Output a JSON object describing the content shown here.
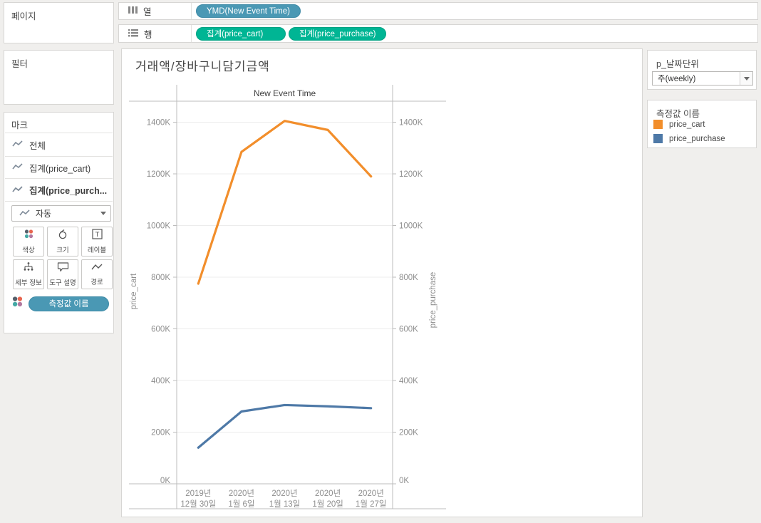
{
  "panels": {
    "pages": {
      "title": "페이지"
    },
    "filters": {
      "title": "필터"
    },
    "marks": {
      "title": "마크",
      "items": [
        "전체",
        "집계(price_cart)",
        "집계(price_purch..."
      ],
      "mark_type": "자동",
      "buttons": [
        {
          "label": "색상",
          "icon": "color-dots-icon"
        },
        {
          "label": "크기",
          "icon": "size-circle-icon"
        },
        {
          "label": "레이블",
          "icon": "label-T-icon"
        },
        {
          "label": "세부 정보",
          "icon": "detail-tree-icon"
        },
        {
          "label": "도구 설명",
          "icon": "tooltip-bubble-icon"
        },
        {
          "label": "경로",
          "icon": "path-line-icon"
        }
      ],
      "encoding_pill": "측정값 이름"
    }
  },
  "shelves": {
    "columns": {
      "label": "열",
      "pills": [
        {
          "label": "YMD(New Event Time)",
          "type": "dimension"
        }
      ]
    },
    "rows": {
      "label": "행",
      "pills": [
        {
          "label": "집계(price_cart)",
          "type": "measure"
        },
        {
          "label": "집계(price_purchase)",
          "type": "measure"
        }
      ]
    }
  },
  "worksheet": {
    "title": "거래액/장바구니담기금액"
  },
  "parameter": {
    "title": "p_날짜단위",
    "value": "주(weekly)"
  },
  "legend": {
    "title": "측정값 이름",
    "items": [
      {
        "label": "price_cart",
        "color": "#f28e2b"
      },
      {
        "label": "price_purchase",
        "color": "#4e79a7"
      }
    ]
  },
  "colors": {
    "dimension_pill": "#4a98b4",
    "measure_pill": "#00b594",
    "series_cart": "#f28e2b",
    "series_purchase": "#4e79a7"
  },
  "chart_data": {
    "type": "line",
    "title": "거래액/장바구니담기금액",
    "pane_header": "New Event Time",
    "categories": [
      [
        "2019년",
        "12월 30일"
      ],
      [
        "2020년",
        "1월 6일"
      ],
      [
        "2020년",
        "1월 13일"
      ],
      [
        "2020년",
        "1월 20일"
      ],
      [
        "2020년",
        "1월 27일"
      ]
    ],
    "series": [
      {
        "name": "price_cart",
        "axis": "left",
        "color": "#f28e2b",
        "values": [
          775000,
          1285000,
          1405000,
          1370000,
          1190000
        ]
      },
      {
        "name": "price_purchase",
        "axis": "right",
        "color": "#4e79a7",
        "values": [
          140000,
          280000,
          305000,
          300000,
          293000
        ]
      }
    ],
    "y_ticks": [
      {
        "value": 0,
        "label": "0K"
      },
      {
        "value": 200000,
        "label": "200K"
      },
      {
        "value": 400000,
        "label": "400K"
      },
      {
        "value": 600000,
        "label": "600K"
      },
      {
        "value": 800000,
        "label": "800K"
      },
      {
        "value": 1000000,
        "label": "1000K"
      },
      {
        "value": 1200000,
        "label": "1200K"
      },
      {
        "value": 1400000,
        "label": "1400K"
      }
    ],
    "y_axis_left": {
      "title": "price_cart"
    },
    "y_axis_right": {
      "title": "price_purchase"
    },
    "ylim": [
      0,
      1460000
    ],
    "grid": true,
    "legend_position": "right-card"
  }
}
